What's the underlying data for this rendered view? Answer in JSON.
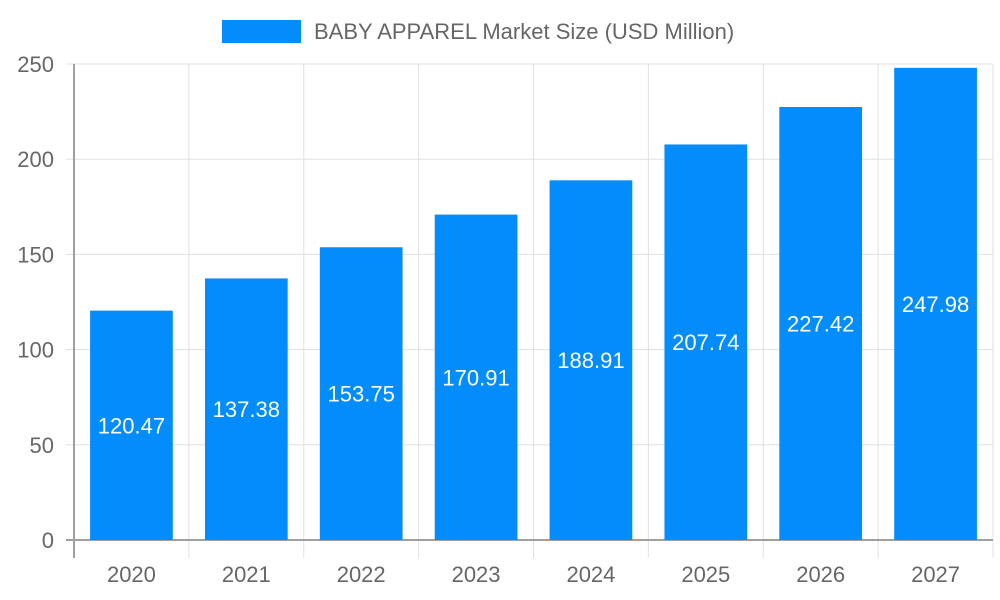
{
  "chart_data": {
    "type": "bar",
    "categories": [
      "2020",
      "2021",
      "2022",
      "2023",
      "2024",
      "2025",
      "2026",
      "2027"
    ],
    "series": [
      {
        "name": "BABY APPAREL Market Size (USD Million)",
        "values": [
          120.47,
          137.38,
          153.75,
          170.91,
          188.91,
          207.74,
          227.42,
          247.98
        ]
      }
    ],
    "ylim": [
      0,
      250
    ],
    "yticks": [
      0,
      50,
      100,
      150,
      200,
      250
    ],
    "grid": true,
    "legend": "top",
    "colors": {
      "bar": "#038cfc",
      "text": "#666666",
      "grid": "#e0e0e0",
      "axis": "#a0a0a0",
      "label": "#ffffff"
    }
  }
}
